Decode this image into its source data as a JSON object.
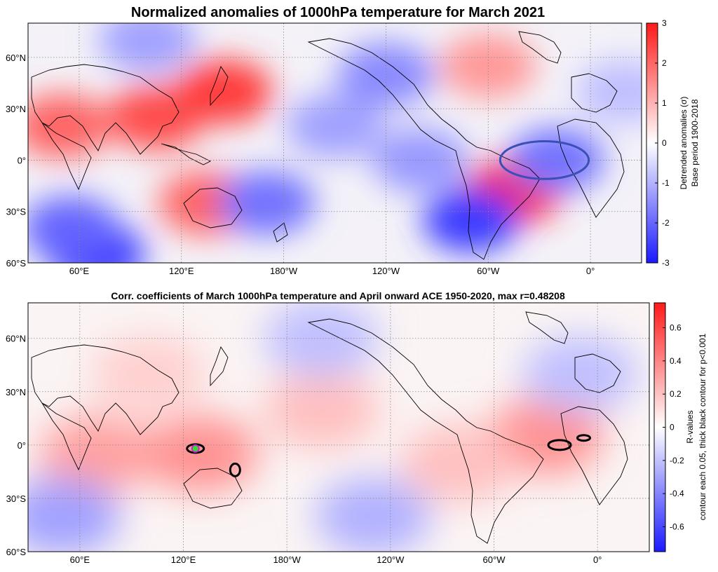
{
  "colors": {
    "red": "#ff1a1a",
    "blue": "#1a1aff",
    "white": "#ffffff",
    "ellipse": "#3b4fb5",
    "marker_fill": "#33dd33",
    "marker_edge": "#cc22cc",
    "grid": "#888888"
  },
  "chart_data": [
    {
      "type": "heatmap",
      "title": "Normalized anomalies of 1000hPa temperature for March 2021",
      "x_tick_labels": [
        "60°E",
        "120°E",
        "180°W",
        "120°W",
        "60°W",
        "0°"
      ],
      "x_tick_lon": [
        60,
        120,
        180,
        240,
        300,
        360
      ],
      "y_tick_labels": [
        "60°N",
        "30°N",
        "0°",
        "30°S",
        "60°S"
      ],
      "y_tick_lat": [
        60,
        30,
        0,
        -30,
        -60
      ],
      "lon_range": [
        30,
        390
      ],
      "lat_range": [
        -60,
        80
      ],
      "colorbar": {
        "ticks": [
          3,
          2,
          1,
          0,
          -1,
          -2,
          -3
        ],
        "range": [
          -3,
          3
        ],
        "label_line1": "Detrended anomalies (σ)",
        "label_line2": "Base period 1900-2018"
      },
      "annotations": [
        {
          "shape": "ellipse",
          "description": "tropical Atlantic highlight",
          "lon_center": 333,
          "lat_center": 0,
          "lon_radius": 26,
          "lat_radius": 11
        }
      ],
      "anomaly_centers": [
        {
          "lon": 50,
          "lat": 20,
          "value": 2.0
        },
        {
          "lon": 105,
          "lat": 25,
          "value": 2.3
        },
        {
          "lon": 145,
          "lat": 40,
          "value": 2.5
        },
        {
          "lon": 135,
          "lat": -25,
          "value": 2.0
        },
        {
          "lon": 70,
          "lat": -55,
          "value": -2.5
        },
        {
          "lon": 55,
          "lat": -40,
          "value": -2.0
        },
        {
          "lon": 170,
          "lat": -25,
          "value": -1.8
        },
        {
          "lon": 210,
          "lat": 20,
          "value": -1.2
        },
        {
          "lon": 240,
          "lat": 50,
          "value": -1.5
        },
        {
          "lon": 300,
          "lat": 55,
          "value": 1.3
        },
        {
          "lon": 315,
          "lat": -18,
          "value": 2.8
        },
        {
          "lon": 290,
          "lat": -35,
          "value": -2.5
        },
        {
          "lon": 340,
          "lat": 0,
          "value": -1.8
        },
        {
          "lon": 260,
          "lat": 0,
          "value": -1.3
        },
        {
          "lon": 380,
          "lat": 40,
          "value": -0.8
        },
        {
          "lon": 100,
          "lat": 70,
          "value": -1.2
        }
      ]
    },
    {
      "type": "heatmap",
      "title": "Corr. coefficients of March 1000hPa temperature and April onward ACE 1950-2020, max r=0.48208",
      "x_tick_labels": [
        "60°E",
        "120°E",
        "180°W",
        "120°W",
        "60°W",
        "0°"
      ],
      "x_tick_lon": [
        60,
        120,
        180,
        240,
        300,
        360
      ],
      "y_tick_labels": [
        "60°N",
        "30°N",
        "0°",
        "30°S",
        "60°S"
      ],
      "y_tick_lat": [
        60,
        30,
        0,
        -30,
        -60
      ],
      "lon_range": [
        30,
        390
      ],
      "lat_range": [
        -60,
        80
      ],
      "max_r": 0.48208,
      "colorbar": {
        "ticks": [
          0.6,
          0.4,
          0.2,
          0,
          -0.2,
          -0.4,
          -0.6
        ],
        "range": [
          -0.75,
          0.75
        ],
        "label_line1": "R-values",
        "label_line2": "contour each 0.05, thick black contour for p<0.001"
      },
      "significant_regions": [
        {
          "lon": 127,
          "lat": -2,
          "note": "max correlation marker"
        },
        {
          "lon": 150,
          "lat": -14
        },
        {
          "lon": 338,
          "lat": 0
        },
        {
          "lon": 352,
          "lat": 4
        }
      ],
      "anomaly_centers": [
        {
          "lon": 70,
          "lat": -5,
          "value": 0.3
        },
        {
          "lon": 130,
          "lat": -5,
          "value": 0.35
        },
        {
          "lon": 200,
          "lat": 20,
          "value": 0.2
        },
        {
          "lon": 330,
          "lat": 5,
          "value": 0.35
        },
        {
          "lon": 280,
          "lat": -10,
          "value": 0.2
        },
        {
          "lon": 50,
          "lat": -40,
          "value": -0.3
        },
        {
          "lon": 230,
          "lat": -40,
          "value": -0.25
        },
        {
          "lon": 200,
          "lat": 60,
          "value": -0.2
        },
        {
          "lon": 350,
          "lat": 40,
          "value": -0.2
        },
        {
          "lon": 100,
          "lat": 40,
          "value": 0.15
        }
      ]
    }
  ]
}
